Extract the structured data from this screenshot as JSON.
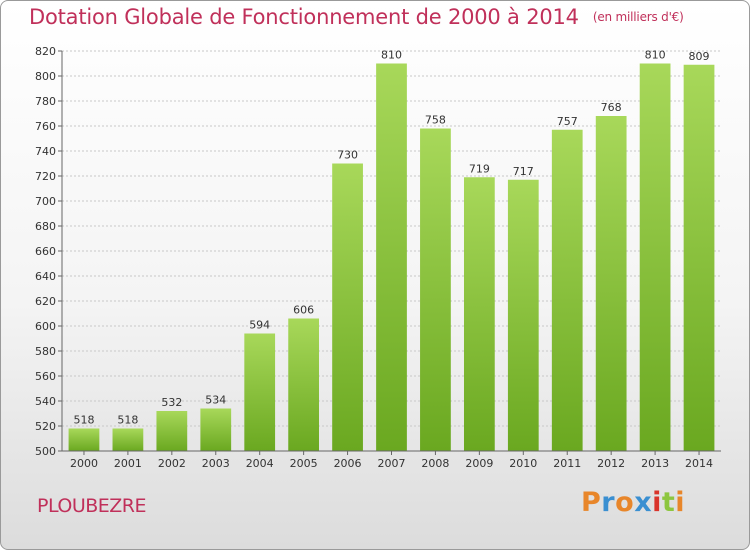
{
  "header": {
    "title": "Dotation Globale de Fonctionnement de 2000 à 2014",
    "subtitle": "(en milliers d'€)"
  },
  "footer": {
    "city": "PLOUBEZRE",
    "logo_letters": [
      "P",
      "r",
      "o",
      "x",
      "i",
      "t",
      "i"
    ],
    "logo_colors": [
      "#e8862a",
      "#3a8fd1",
      "#e8862a",
      "#3a8fd1",
      "#d9342b",
      "#8dc63f",
      "#e8862a"
    ]
  },
  "colors": {
    "bar_light": "#a8d85a",
    "bar_dark": "#6aa820",
    "grid": "#c8c8c8",
    "axis": "#666666",
    "accent": "#c0305a"
  },
  "chart_data": {
    "type": "bar",
    "categories": [
      "2000",
      "2001",
      "2002",
      "2003",
      "2004",
      "2005",
      "2006",
      "2007",
      "2008",
      "2009",
      "2010",
      "2011",
      "2012",
      "2013",
      "2014"
    ],
    "values": [
      518,
      518,
      532,
      534,
      594,
      606,
      730,
      810,
      758,
      719,
      717,
      757,
      768,
      810,
      809
    ],
    "title": "Dotation Globale de Fonctionnement de 2000 à 2014",
    "subtitle": "(en milliers d'€)",
    "xlabel": "",
    "ylabel": "",
    "ylim": [
      500,
      820
    ],
    "yticks": [
      500,
      520,
      540,
      560,
      580,
      600,
      620,
      640,
      660,
      680,
      700,
      720,
      740,
      760,
      780,
      800,
      820
    ],
    "grid": true,
    "legend": "none"
  }
}
